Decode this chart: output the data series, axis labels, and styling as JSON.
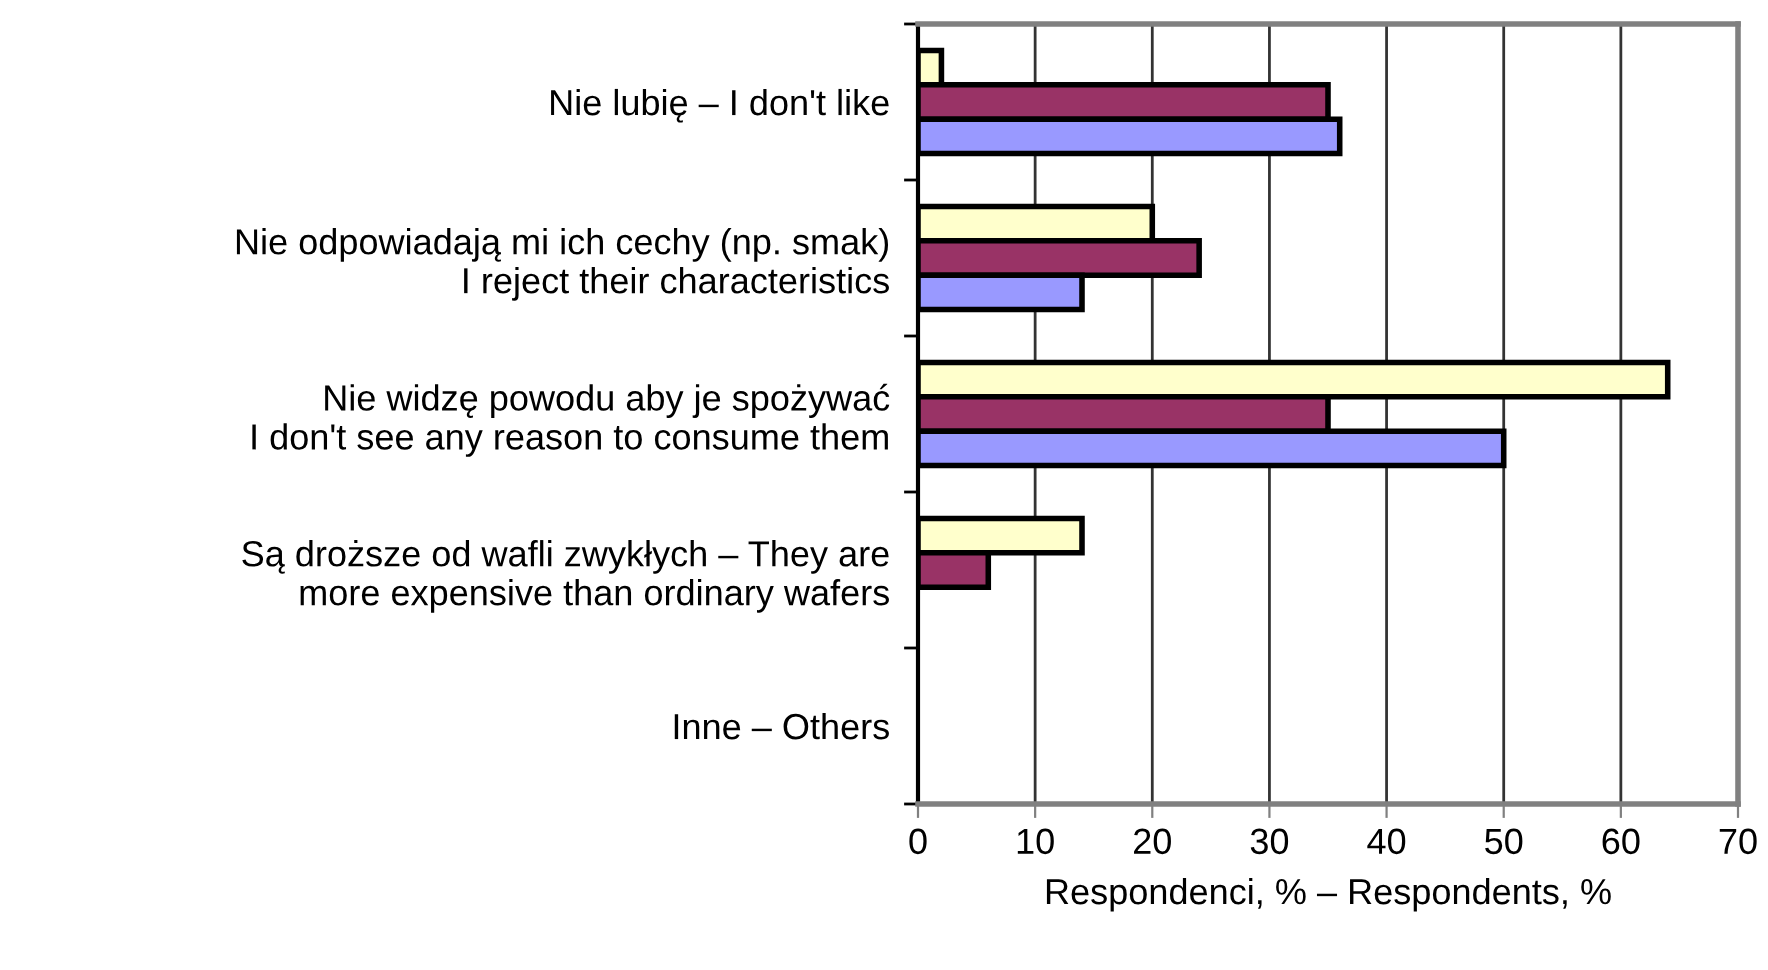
{
  "chart_data": {
    "type": "bar",
    "orientation": "horizontal",
    "categories": [
      "Nie lubię – I don't like",
      "Nie odpowiadają mi ich cechy (np. smak)\nI reject their characteristics",
      "Nie widzę powodu aby je spożywać\nI don't see any reason to consume them",
      "Są droższe od wafli zwykłych – They are\nmore expensive than ordinary wafers",
      "Inne – Others"
    ],
    "series": [
      {
        "color": "#ffffcc",
        "values": [
          2,
          20,
          64,
          14,
          null
        ]
      },
      {
        "color": "#993366",
        "values": [
          35,
          24,
          35,
          6,
          null
        ]
      },
      {
        "color": "#9999ff",
        "values": [
          36,
          14,
          50,
          null,
          null
        ]
      }
    ],
    "xlabel": "Respondenci, % – Respondents, %",
    "xlim": [
      0,
      70
    ],
    "xticks": [
      0,
      10,
      20,
      30,
      40,
      50,
      60,
      70
    ],
    "grid": "x",
    "legend": false
  }
}
